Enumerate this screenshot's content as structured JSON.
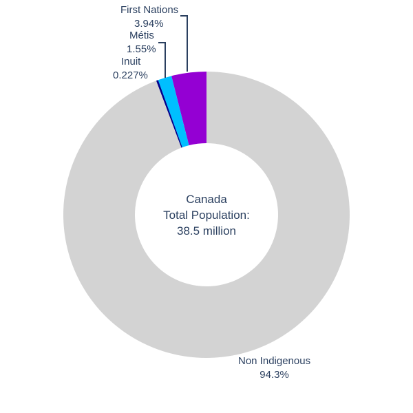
{
  "chart_data": {
    "type": "pie",
    "hole": true,
    "center_text": [
      "Canada",
      "Total Population:",
      "38.5 million"
    ],
    "slices": [
      {
        "label": "First Nations",
        "value": 3.94,
        "value_text": "3.94%",
        "color": "#9400d3"
      },
      {
        "label": "Métis",
        "value": 1.55,
        "value_text": "1.55%",
        "color": "#00bfff"
      },
      {
        "label": "Inuit",
        "value": 0.227,
        "value_text": "0.227%",
        "color": "#00008b"
      },
      {
        "label": "Non Indigenous",
        "value": 94.3,
        "value_text": "94.3%",
        "color": "#d3d3d3"
      }
    ],
    "direction": "counterclockwise",
    "text_color": "#2a3f5f",
    "connector_color": "#2a3f5f"
  }
}
